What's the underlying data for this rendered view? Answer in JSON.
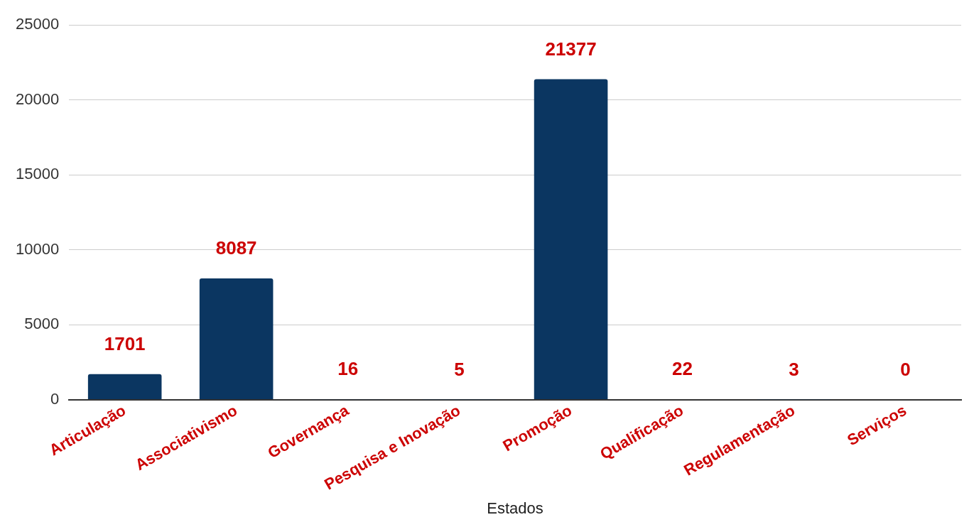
{
  "chart_data": {
    "type": "bar",
    "xlabel": "Estados",
    "categories": [
      "Articulação",
      "Associativismo",
      "Governança",
      "Pesquisa e Inovação",
      "Promoção",
      "Qualificação",
      "Regulamentação",
      "Serviços"
    ],
    "values": [
      1701,
      8087,
      16,
      5,
      21377,
      22,
      3,
      0
    ],
    "color": "#0b3661",
    "ylim": [
      0,
      25000
    ],
    "yticks": [
      0,
      5000,
      10000,
      15000,
      20000,
      25000
    ],
    "grid": "y",
    "data_labels": true,
    "legend": false
  }
}
